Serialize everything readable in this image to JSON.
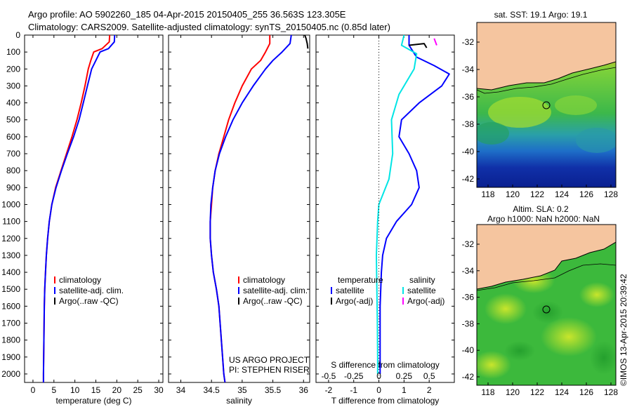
{
  "header": {
    "line1": "Argo profile: AO 5902260_185 04-Apr-2015 20150405_255 36.563S 123.305E",
    "line2": "Climatology: CARS2009. Satellite-adjusted climatology: synTS_20150405.nc (0.85d later)"
  },
  "colors": {
    "climatology": "#ff0000",
    "satellite": "#0000ff",
    "argo": "#000000",
    "sat_salinity": "#00e5e5",
    "argo_salinity": "#ff00ff",
    "land": "#f5c59f"
  },
  "chart_data": [
    {
      "type": "line",
      "panel": "temperature",
      "xlabel": "temperature (deg C)",
      "ylabel": "",
      "xlim": [
        -2,
        31
      ],
      "ylim": [
        2050,
        0
      ],
      "xticks": [
        "0",
        "5",
        "10",
        "15",
        "20",
        "25",
        "30"
      ],
      "yticks": [
        "0",
        "100",
        "200",
        "300",
        "400",
        "500",
        "600",
        "700",
        "800",
        "900",
        "1000",
        "1100",
        "1200",
        "1300",
        "1400",
        "1500",
        "1600",
        "1700",
        "1800",
        "1900",
        "2000"
      ],
      "legend": [
        "climatology",
        "satellite-adj. clim.",
        "Argo(..raw -QC)"
      ],
      "series": [
        {
          "name": "climatology",
          "color": "#ff0000",
          "x": [
            18.3,
            18.2,
            16.5,
            14.5,
            13.8,
            13.2,
            12.4,
            11.5,
            10.5,
            9.3,
            8.0,
            6.7,
            5.4,
            4.5,
            3.9,
            3.5,
            3.2,
            3.0,
            2.8,
            2.7,
            2.6,
            2.5,
            2.5
          ],
          "y": [
            0,
            40,
            80,
            100,
            150,
            200,
            300,
            400,
            500,
            600,
            700,
            800,
            900,
            1000,
            1100,
            1200,
            1300,
            1400,
            1500,
            1600,
            1800,
            2000,
            2050
          ]
        },
        {
          "name": "satellite-adj. clim.",
          "color": "#0000ff",
          "x": [
            19.5,
            19.4,
            18.0,
            16.0,
            15.0,
            14.0,
            13.0,
            12.0,
            11.0,
            9.7,
            8.2,
            6.8,
            5.5,
            4.5,
            3.9,
            3.5,
            3.2,
            3.0,
            2.8,
            2.7,
            2.6,
            2.5,
            2.5
          ],
          "y": [
            0,
            40,
            80,
            100,
            150,
            200,
            300,
            400,
            500,
            600,
            700,
            800,
            900,
            1000,
            1100,
            1200,
            1300,
            1400,
            1500,
            1600,
            1800,
            2000,
            2050
          ]
        }
      ],
      "annotations": []
    },
    {
      "type": "line",
      "panel": "salinity",
      "xlabel": "salinity",
      "ylabel": "",
      "xlim": [
        33.8,
        36.1
      ],
      "ylim": [
        2050,
        0
      ],
      "xticks": [
        "34",
        "34.5",
        "35",
        "35.5",
        "36"
      ],
      "legend": [
        "climatology",
        "satellite-adj. clim.",
        "Argo(..raw -QC)"
      ],
      "series": [
        {
          "name": "climatology",
          "color": "#ff0000",
          "x": [
            35.45,
            35.45,
            35.38,
            35.3,
            35.15,
            35.0,
            34.88,
            34.78,
            34.7,
            34.62,
            34.56,
            34.52,
            34.5,
            34.48,
            34.48,
            34.5,
            34.53,
            34.58,
            34.62,
            34.66,
            34.7,
            34.72
          ],
          "y": [
            0,
            50,
            100,
            150,
            200,
            300,
            400,
            500,
            600,
            700,
            800,
            900,
            1000,
            1100,
            1200,
            1300,
            1400,
            1500,
            1600,
            1800,
            2000,
            2050
          ]
        },
        {
          "name": "satellite-adj. clim.",
          "color": "#0000ff",
          "x": [
            35.8,
            35.78,
            35.65,
            35.5,
            35.38,
            35.18,
            35.0,
            34.85,
            34.73,
            34.63,
            34.56,
            34.52,
            34.49,
            34.48,
            34.48,
            34.5,
            34.53,
            34.58,
            34.62,
            34.66,
            34.7,
            34.72
          ],
          "y": [
            0,
            50,
            100,
            150,
            200,
            300,
            400,
            500,
            600,
            700,
            800,
            900,
            1000,
            1100,
            1200,
            1300,
            1400,
            1500,
            1600,
            1800,
            2000,
            2050
          ]
        },
        {
          "name": "Argo(..raw -QC)",
          "color": "#000000",
          "x": [
            36.02,
            36.04,
            36.06,
            36.07
          ],
          "y": [
            0,
            20,
            50,
            80
          ]
        }
      ],
      "annotations": [
        "US ARGO PROJECT",
        "PI: STEPHEN RISER"
      ]
    },
    {
      "type": "line",
      "panel": "difference",
      "xlabel": "T difference from climatology",
      "xlabel_top": "S difference from climatology",
      "xlim": [
        -2.5,
        3.0
      ],
      "ylim": [
        2050,
        0
      ],
      "xticks": [
        "-2",
        "-1",
        "0",
        "1",
        "2"
      ],
      "xticks_salinity": [
        "-0.5",
        "-0.25",
        "0",
        "0.25",
        "0.5"
      ],
      "legend": [
        "temperature",
        "satellite",
        "Argo(-adj)",
        "salinity",
        "satellite",
        "Argo(-adj)"
      ],
      "series": [
        {
          "name": "satellite",
          "group": "temperature",
          "color": "#0000ff",
          "x": [
            1.2,
            1.2,
            1.5,
            2.2,
            2.8,
            2.5,
            1.6,
            0.9,
            0.8,
            1.2,
            1.5,
            1.6,
            1.3,
            0.7,
            0.3,
            0.15,
            0.1,
            0.05,
            0.05,
            0.05
          ],
          "y": [
            0,
            60,
            130,
            180,
            230,
            300,
            400,
            500,
            600,
            700,
            800,
            900,
            1000,
            1100,
            1200,
            1300,
            1400,
            1600,
            1800,
            2000
          ]
        },
        {
          "name": "Argo(-adj)",
          "group": "temperature",
          "color": "#000000",
          "x": [
            1.2,
            1.8,
            1.9
          ],
          "y": [
            60,
            50,
            75
          ]
        },
        {
          "name": "satellite",
          "group": "salinity",
          "color": "#00e5e5",
          "x": [
            1.0,
            0.9,
            1.5,
            1.4,
            0.8,
            0.5,
            0.55,
            0.4,
            0.0,
            -0.05,
            -0.1,
            -0.08,
            -0.06,
            -0.05,
            -0.05
          ],
          "y": [
            0,
            60,
            110,
            200,
            350,
            500,
            700,
            850,
            1000,
            1100,
            1300,
            1500,
            1700,
            1900,
            2000
          ]
        },
        {
          "name": "Argo(-adj)",
          "group": "salinity",
          "color": "#ff00ff",
          "x": [
            2.2,
            2.3
          ],
          "y": [
            20,
            60
          ]
        }
      ],
      "annotations": []
    },
    {
      "type": "heatmap",
      "panel": "sst-map",
      "title": "sat. SST: 19.1  Argo: 19.1",
      "xticks": [
        "118",
        "120",
        "122",
        "124",
        "126",
        "128"
      ],
      "yticks": [
        "-32",
        "-34",
        "-36",
        "-38",
        "-40",
        "-42"
      ],
      "marker": {
        "lon": 123.3,
        "lat": -36.56
      }
    },
    {
      "type": "heatmap",
      "panel": "sla-map",
      "title": "Altim. SLA: 0.2",
      "subtitle": "Argo h1000: NaN h2000: NaN",
      "xticks": [
        "118",
        "120",
        "122",
        "124",
        "126",
        "128"
      ],
      "yticks": [
        "-32",
        "-34",
        "-36",
        "-38",
        "-40",
        "-42"
      ],
      "marker": {
        "lon": 123.3,
        "lat": -36.56
      }
    }
  ],
  "credit": "©IMOS 13-Apr-2015 20:39:42"
}
